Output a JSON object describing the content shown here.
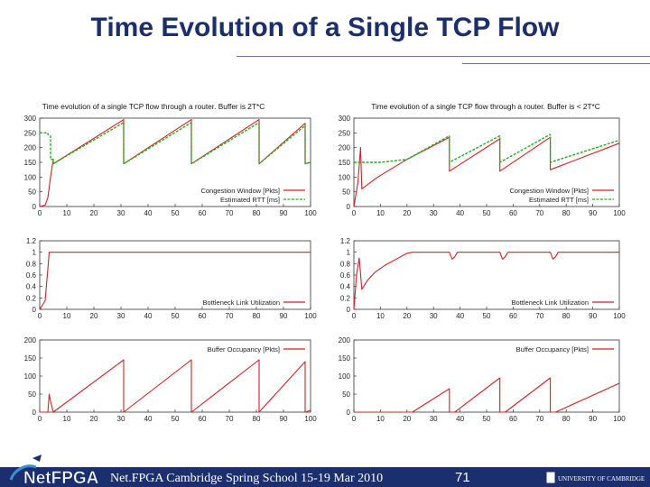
{
  "slide": {
    "title": "Time Evolution of a Single TCP Flow",
    "footer_text": "Net.FPGA Cambridge Spring School 15-19 Mar 2010",
    "page_number": "71",
    "logo_text": "NetFPGA",
    "affiliation_logo_text": "UNIVERSITY OF CAMBRIDGE"
  },
  "colors": {
    "title": "#1b2f6e",
    "footer": "#1b2f6e",
    "congestion": "#d42020",
    "rtt": "#22b022",
    "logo_accent": "#3a8fd6"
  },
  "chart_data": [
    {
      "id": "left-cwnd",
      "panel_title": "Time evolution of a single TCP flow through a router.  Buffer is 2T*C",
      "type": "line",
      "xlim": [
        0,
        100
      ],
      "ylim": [
        0,
        300
      ],
      "xticks": [
        0,
        10,
        20,
        30,
        40,
        50,
        60,
        70,
        80,
        90,
        100
      ],
      "yticks": [
        0,
        50,
        100,
        150,
        200,
        250,
        300
      ],
      "legend_position": "bottom-right",
      "series": [
        {
          "name": "Congestion Window [Pkts]",
          "color": "#d42020",
          "dashed": false,
          "x": [
            0,
            2,
            3,
            4,
            5,
            5,
            31,
            31,
            56,
            56,
            81,
            81,
            98,
            98,
            100
          ],
          "y": [
            0,
            5,
            30,
            100,
            160,
            145,
            295,
            145,
            295,
            145,
            295,
            145,
            283,
            145,
            150
          ]
        },
        {
          "name": "Estimated RTT [ms]",
          "color": "#22b022",
          "dashed": true,
          "x": [
            0,
            3,
            3,
            4,
            4,
            5,
            5,
            31,
            31,
            56,
            56,
            81,
            81,
            98,
            98,
            100
          ],
          "y": [
            250,
            250,
            245,
            240,
            160,
            160,
            145,
            285,
            145,
            285,
            145,
            285,
            145,
            275,
            145,
            150
          ]
        }
      ]
    },
    {
      "id": "right-cwnd",
      "panel_title": "Time evolution of a single TCP flow through a router.  Buffer is < 2T*C",
      "type": "line",
      "xlim": [
        0,
        100
      ],
      "ylim": [
        0,
        300
      ],
      "xticks": [
        0,
        10,
        20,
        30,
        40,
        50,
        60,
        70,
        80,
        90,
        100
      ],
      "yticks": [
        0,
        50,
        100,
        150,
        200,
        250,
        300
      ],
      "legend_position": "bottom-right",
      "series": [
        {
          "name": "Congestion Window [Pkts]",
          "color": "#d42020",
          "dashed": false,
          "x": [
            0,
            1.5,
            2.5,
            3,
            3,
            9,
            20,
            36,
            36,
            55,
            55,
            74,
            74,
            100
          ],
          "y": [
            0,
            80,
            200,
            60,
            60,
            100,
            160,
            235,
            120,
            230,
            120,
            235,
            125,
            215
          ]
        },
        {
          "name": "Estimated RTT [ms]",
          "color": "#22b022",
          "dashed": true,
          "x": [
            0,
            3,
            3,
            10,
            20,
            36,
            36,
            55,
            55,
            74,
            74,
            100
          ],
          "y": [
            150,
            150,
            150,
            150,
            160,
            240,
            150,
            240,
            150,
            245,
            150,
            225
          ]
        }
      ]
    },
    {
      "id": "left-util",
      "type": "line",
      "xlim": [
        0,
        100
      ],
      "ylim": [
        0,
        1.2
      ],
      "xticks": [
        0,
        10,
        20,
        30,
        40,
        50,
        60,
        70,
        80,
        90,
        100
      ],
      "yticks": [
        0,
        0.2,
        0.4,
        0.6,
        0.8,
        1,
        1.2
      ],
      "legend_position": "bottom-right",
      "series": [
        {
          "name": "Bottleneck Link Utilization",
          "color": "#d42020",
          "dashed": false,
          "x": [
            0,
            2,
            3,
            3.5,
            4,
            100
          ],
          "y": [
            0,
            0.15,
            0.7,
            1.0,
            1.0,
            1.0
          ]
        }
      ]
    },
    {
      "id": "right-util",
      "type": "line",
      "xlim": [
        0,
        100
      ],
      "ylim": [
        0,
        1.2
      ],
      "xticks": [
        0,
        10,
        20,
        30,
        40,
        50,
        60,
        70,
        80,
        90,
        100
      ],
      "yticks": [
        0,
        0.2,
        0.4,
        0.6,
        0.8,
        1,
        1.2
      ],
      "legend_position": "bottom-right",
      "series": [
        {
          "name": "Bottleneck Link Utilization",
          "color": "#d42020",
          "dashed": false,
          "x": [
            0,
            1,
            2,
            3,
            5,
            8,
            12,
            16,
            20,
            22,
            36,
            37,
            38,
            39,
            55,
            56,
            57,
            58,
            74,
            75,
            76,
            77,
            100
          ],
          "y": [
            0,
            0.6,
            0.9,
            0.35,
            0.5,
            0.65,
            0.78,
            0.88,
            0.98,
            1.0,
            1.0,
            0.88,
            0.92,
            1.0,
            1.0,
            0.88,
            0.92,
            1.0,
            1.0,
            0.88,
            0.92,
            1.0,
            1.0
          ]
        }
      ]
    },
    {
      "id": "left-buffer",
      "type": "line",
      "xlim": [
        0,
        100
      ],
      "ylim": [
        0,
        200
      ],
      "xticks": [
        0,
        10,
        20,
        30,
        40,
        50,
        60,
        70,
        80,
        90,
        100
      ],
      "yticks": [
        0,
        50,
        100,
        150,
        200
      ],
      "legend_position": "top-right",
      "series": [
        {
          "name": "Buffer Occupancy [Pkts]",
          "color": "#d42020",
          "dashed": false,
          "x": [
            0,
            3,
            3.5,
            4,
            5,
            5,
            31,
            31,
            56,
            56,
            81,
            81,
            98,
            98,
            100
          ],
          "y": [
            0,
            0,
            50,
            30,
            0,
            0,
            145,
            0,
            145,
            0,
            145,
            0,
            140,
            0,
            5
          ]
        }
      ]
    },
    {
      "id": "right-buffer",
      "type": "line",
      "xlim": [
        0,
        100
      ],
      "ylim": [
        0,
        200
      ],
      "xticks": [
        0,
        10,
        20,
        30,
        40,
        50,
        60,
        70,
        80,
        90,
        100
      ],
      "yticks": [
        0,
        50,
        100,
        150,
        200
      ],
      "legend_position": "top-right",
      "series": [
        {
          "name": "Buffer Occupancy [Pkts]",
          "color": "#d42020",
          "dashed": false,
          "x": [
            0,
            22,
            36,
            36,
            38,
            55,
            55,
            57,
            74,
            74,
            76,
            100
          ],
          "y": [
            0,
            0,
            65,
            0,
            0,
            95,
            0,
            0,
            95,
            0,
            0,
            80
          ]
        }
      ]
    }
  ]
}
